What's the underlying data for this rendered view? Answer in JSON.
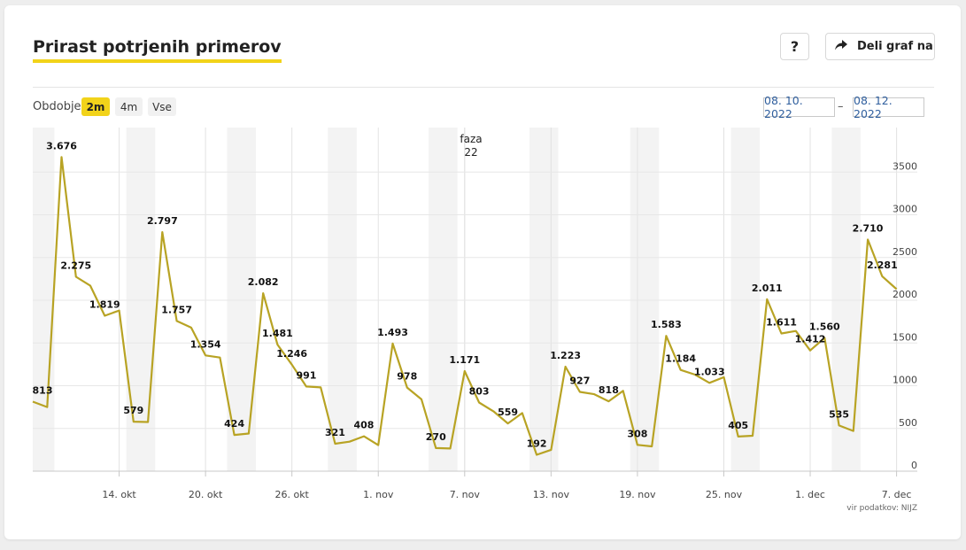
{
  "card": {
    "title": "Prirast potrjenih primerov",
    "help_label": "?",
    "share_label": "Deli graf na",
    "period_label": "Obdobje",
    "period_options": [
      "2m",
      "4m",
      "Vse"
    ],
    "period_selected": "2m",
    "date_from": "08. 10. 2022",
    "date_separator": "–",
    "date_to": "08. 12. 2022",
    "source": "vir podatkov: NIJZ",
    "phase_label": "faza",
    "phase_number": "22"
  },
  "colors": {
    "accent": "#f2d31a",
    "line": "#b8a324",
    "date_text": "#305f9e"
  },
  "icons": {
    "share": "share-arrow-icon"
  },
  "chart_data": {
    "type": "line",
    "title": "Prirast potrjenih primerov",
    "xlabel": "",
    "ylabel": "",
    "ylim": [
      0,
      3900
    ],
    "y_ticks": [
      "0",
      "500",
      "1000",
      "1500",
      "2000",
      "2500",
      "3000",
      "3500"
    ],
    "x_ticks": [
      {
        "date": "2022-10-14",
        "label": "14. okt"
      },
      {
        "date": "2022-10-20",
        "label": "20. okt"
      },
      {
        "date": "2022-10-26",
        "label": "26. okt"
      },
      {
        "date": "2022-11-01",
        "label": "1. nov"
      },
      {
        "date": "2022-11-07",
        "label": "7. nov"
      },
      {
        "date": "2022-11-13",
        "label": "13. nov"
      },
      {
        "date": "2022-11-19",
        "label": "19. nov"
      },
      {
        "date": "2022-11-25",
        "label": "25. nov"
      },
      {
        "date": "2022-12-01",
        "label": "1. dec"
      },
      {
        "date": "2022-12-07",
        "label": "7. dec"
      }
    ],
    "grid": true,
    "weekend_bands": true,
    "phase_marker": {
      "date": "2022-11-07",
      "label": "faza",
      "number": "22"
    },
    "series": [
      {
        "points": [
          {
            "date": "2022-10-08",
            "value": 813,
            "label": "813"
          },
          {
            "date": "2022-10-09",
            "value": 750,
            "label": ""
          },
          {
            "date": "2022-10-10",
            "value": 3676,
            "label": "3.676"
          },
          {
            "date": "2022-10-11",
            "value": 2275,
            "label": "2.275"
          },
          {
            "date": "2022-10-12",
            "value": 2170,
            "label": ""
          },
          {
            "date": "2022-10-13",
            "value": 1819,
            "label": "1.819"
          },
          {
            "date": "2022-10-14",
            "value": 1880,
            "label": ""
          },
          {
            "date": "2022-10-15",
            "value": 579,
            "label": "579"
          },
          {
            "date": "2022-10-16",
            "value": 575,
            "label": ""
          },
          {
            "date": "2022-10-17",
            "value": 2797,
            "label": "2.797"
          },
          {
            "date": "2022-10-18",
            "value": 1757,
            "label": "1.757"
          },
          {
            "date": "2022-10-19",
            "value": 1680,
            "label": ""
          },
          {
            "date": "2022-10-20",
            "value": 1354,
            "label": "1.354"
          },
          {
            "date": "2022-10-21",
            "value": 1330,
            "label": ""
          },
          {
            "date": "2022-10-22",
            "value": 424,
            "label": "424"
          },
          {
            "date": "2022-10-23",
            "value": 440,
            "label": ""
          },
          {
            "date": "2022-10-24",
            "value": 2082,
            "label": "2.082"
          },
          {
            "date": "2022-10-25",
            "value": 1481,
            "label": "1.481"
          },
          {
            "date": "2022-10-26",
            "value": 1246,
            "label": "1.246"
          },
          {
            "date": "2022-10-27",
            "value": 991,
            "label": "991"
          },
          {
            "date": "2022-10-28",
            "value": 980,
            "label": ""
          },
          {
            "date": "2022-10-29",
            "value": 321,
            "label": "321"
          },
          {
            "date": "2022-10-30",
            "value": 345,
            "label": ""
          },
          {
            "date": "2022-10-31",
            "value": 408,
            "label": "408"
          },
          {
            "date": "2022-11-01",
            "value": 305,
            "label": ""
          },
          {
            "date": "2022-11-02",
            "value": 1493,
            "label": "1.493"
          },
          {
            "date": "2022-11-03",
            "value": 978,
            "label": "978"
          },
          {
            "date": "2022-11-04",
            "value": 840,
            "label": ""
          },
          {
            "date": "2022-11-05",
            "value": 270,
            "label": "270"
          },
          {
            "date": "2022-11-06",
            "value": 265,
            "label": ""
          },
          {
            "date": "2022-11-07",
            "value": 1171,
            "label": "1.171"
          },
          {
            "date": "2022-11-08",
            "value": 803,
            "label": "803"
          },
          {
            "date": "2022-11-09",
            "value": 700,
            "label": ""
          },
          {
            "date": "2022-11-10",
            "value": 559,
            "label": "559"
          },
          {
            "date": "2022-11-11",
            "value": 680,
            "label": ""
          },
          {
            "date": "2022-11-12",
            "value": 192,
            "label": "192"
          },
          {
            "date": "2022-11-13",
            "value": 250,
            "label": ""
          },
          {
            "date": "2022-11-14",
            "value": 1223,
            "label": "1.223"
          },
          {
            "date": "2022-11-15",
            "value": 927,
            "label": "927"
          },
          {
            "date": "2022-11-16",
            "value": 900,
            "label": ""
          },
          {
            "date": "2022-11-17",
            "value": 818,
            "label": "818"
          },
          {
            "date": "2022-11-18",
            "value": 940,
            "label": ""
          },
          {
            "date": "2022-11-19",
            "value": 308,
            "label": "308"
          },
          {
            "date": "2022-11-20",
            "value": 290,
            "label": ""
          },
          {
            "date": "2022-11-21",
            "value": 1583,
            "label": "1.583"
          },
          {
            "date": "2022-11-22",
            "value": 1184,
            "label": "1.184"
          },
          {
            "date": "2022-11-23",
            "value": 1130,
            "label": ""
          },
          {
            "date": "2022-11-24",
            "value": 1033,
            "label": "1.033"
          },
          {
            "date": "2022-11-25",
            "value": 1100,
            "label": ""
          },
          {
            "date": "2022-11-26",
            "value": 405,
            "label": "405"
          },
          {
            "date": "2022-11-27",
            "value": 415,
            "label": ""
          },
          {
            "date": "2022-11-28",
            "value": 2011,
            "label": "2.011"
          },
          {
            "date": "2022-11-29",
            "value": 1611,
            "label": "1.611"
          },
          {
            "date": "2022-11-30",
            "value": 1640,
            "label": ""
          },
          {
            "date": "2022-12-01",
            "value": 1412,
            "label": "1.412"
          },
          {
            "date": "2022-12-02",
            "value": 1560,
            "label": "1.560"
          },
          {
            "date": "2022-12-03",
            "value": 535,
            "label": "535"
          },
          {
            "date": "2022-12-04",
            "value": 470,
            "label": ""
          },
          {
            "date": "2022-12-05",
            "value": 2710,
            "label": "2.710"
          },
          {
            "date": "2022-12-06",
            "value": 2281,
            "label": "2.281"
          },
          {
            "date": "2022-12-07",
            "value": 2130,
            "label": ""
          }
        ]
      }
    ]
  }
}
